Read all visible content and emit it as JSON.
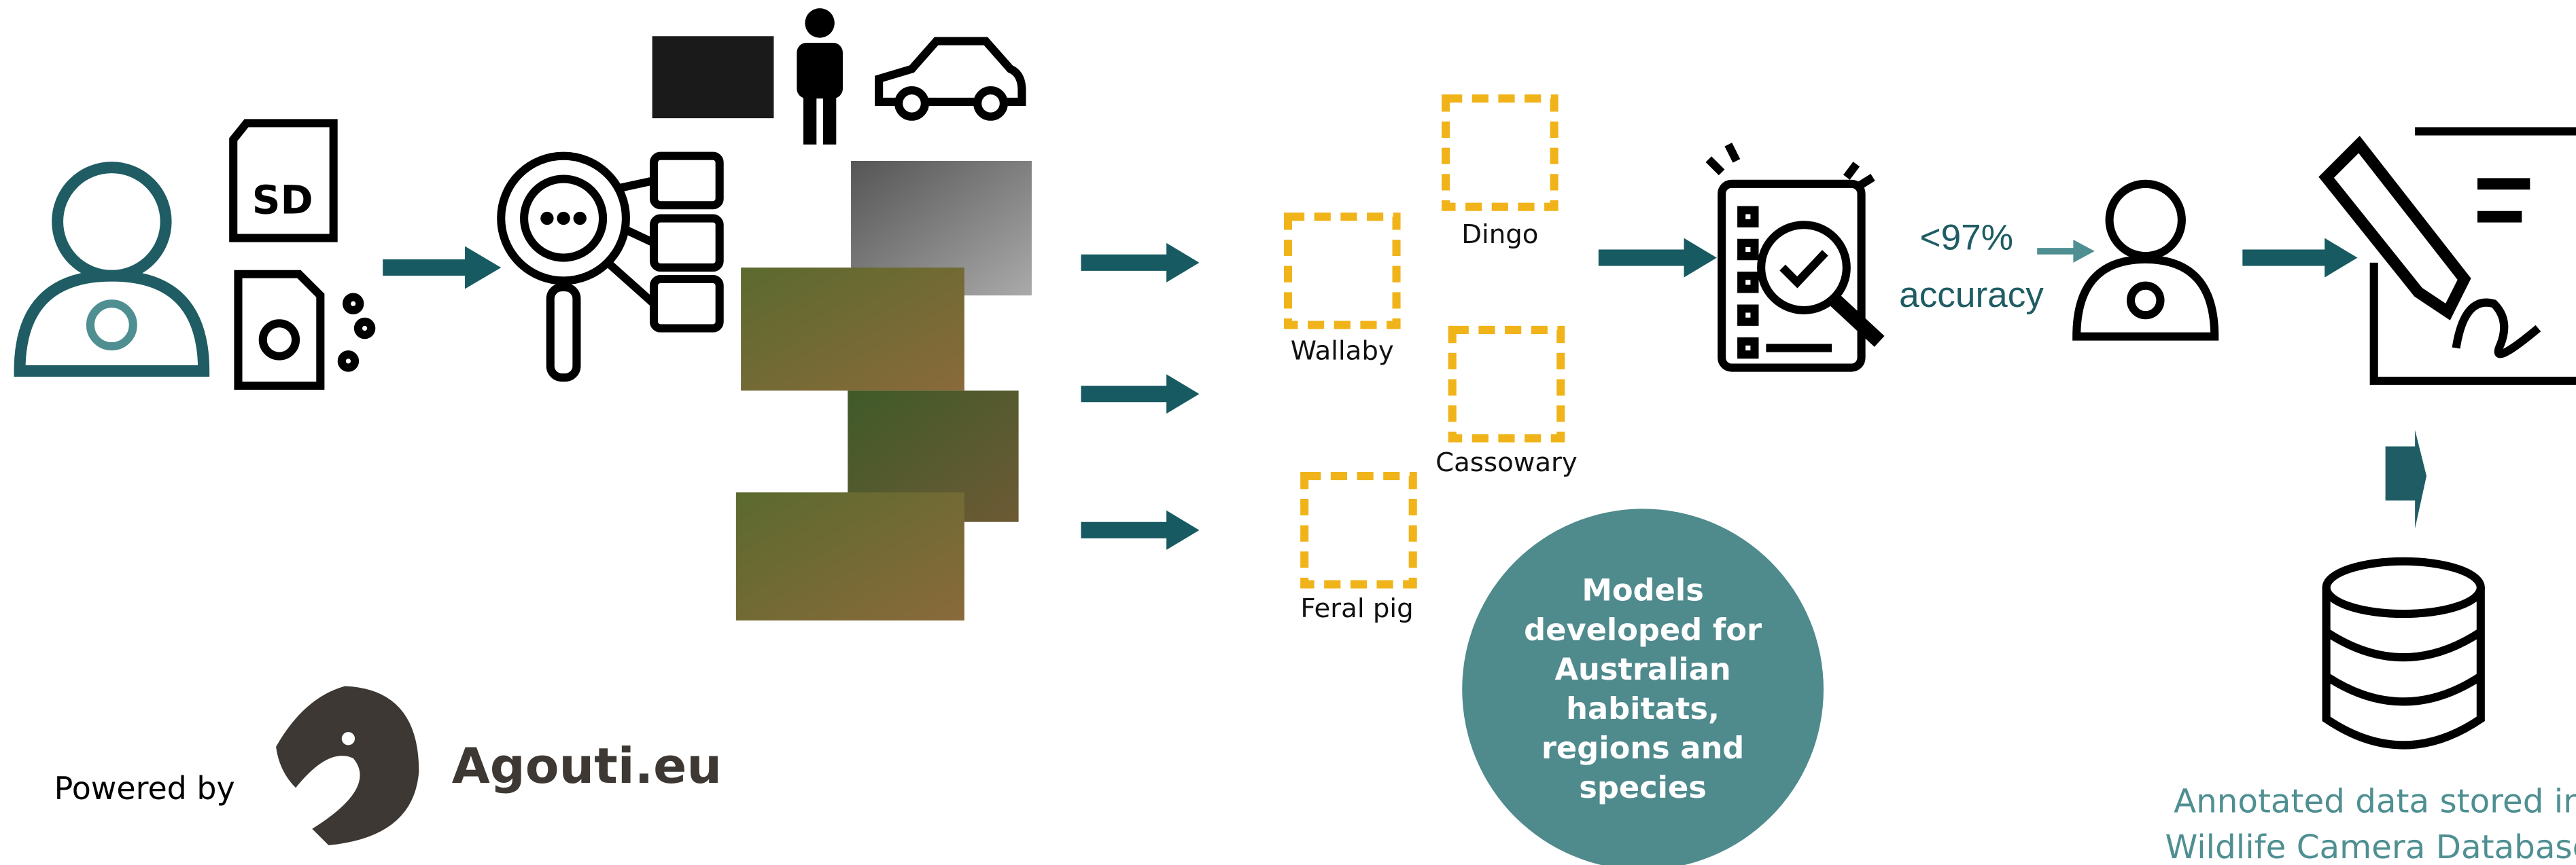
{
  "species_labels": [
    "Dingo",
    "Wallaby",
    "Cassowary",
    "Feral pig"
  ],
  "accuracy": [
    "<97%",
    "accuracy"
  ],
  "models_note": [
    "Models",
    "developed for",
    "Australian",
    "habitats,",
    "regions and",
    "species"
  ],
  "storage_note": [
    "Annotated data stored in",
    "Wildlife Camera Database"
  ],
  "footer": {
    "powered_by": "Powered by",
    "logo_text": "Agouti.eu"
  }
}
